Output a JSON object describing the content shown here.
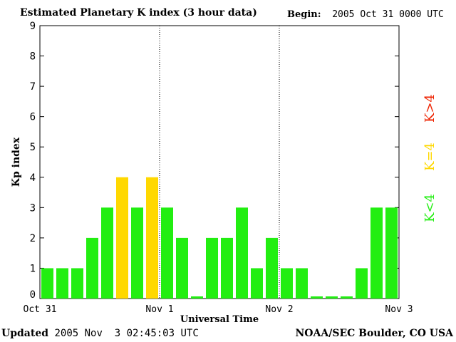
{
  "header": {
    "title": "Estimated Planetary K index (3 hour data)",
    "begin_label": "Begin:",
    "begin_value": "2005 Oct 31 0000 UTC"
  },
  "footer": {
    "updated_label": "Updated",
    "updated_value": "2005 Nov  3 02:45:03 UTC",
    "source": "NOAA/SEC Boulder, CO USA"
  },
  "legend": {
    "items": [
      {
        "label": "K<4",
        "color": "#22ee11"
      },
      {
        "label": "K=4",
        "color": "#ffd800"
      },
      {
        "label": "K>4",
        "color": "#ee2200"
      }
    ]
  },
  "colors": {
    "low": "#22ee11",
    "equal": "#ffd800",
    "high": "#ee2200"
  },
  "chart_data": {
    "type": "bar",
    "title": "Estimated Planetary K index (3 hour data)",
    "xlabel": "Universal Time",
    "ylabel": "Kp index",
    "ylim": [
      0,
      9
    ],
    "yticks": [
      0,
      1,
      2,
      3,
      4,
      5,
      6,
      7,
      8,
      9
    ],
    "xtick_labels": [
      "Oct 31",
      "Nov 1",
      "Nov 2",
      "Nov 3"
    ],
    "day_separators": [
      "Nov 1",
      "Nov 2"
    ],
    "interval_hours": 3,
    "start": "2005 Oct 31 0000 UTC",
    "values": [
      1,
      1,
      1,
      2,
      3,
      4,
      3,
      4,
      3,
      2,
      0.05,
      2,
      2,
      3,
      1,
      2,
      1,
      1,
      0.05,
      0.05,
      0.05,
      1,
      3,
      3
    ]
  }
}
